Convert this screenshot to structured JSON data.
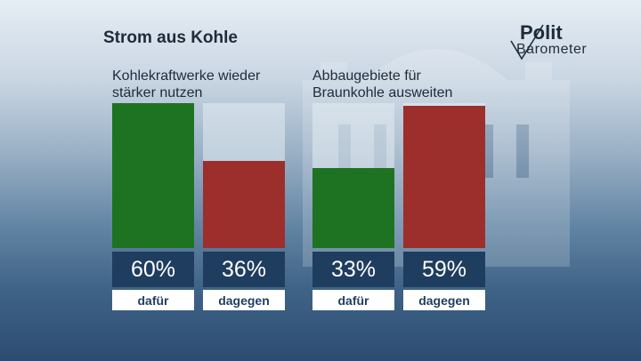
{
  "header": {
    "title": "Strom aus Kohle"
  },
  "logo": {
    "line1": "Polit",
    "line2": "Barometer"
  },
  "colors": {
    "for": "#1e7322",
    "against": "#9c2f2c",
    "value_box": "#1f3d5e"
  },
  "chart_data": [
    {
      "type": "bar",
      "title": "Kohlekraftwerke wieder stärker nutzen",
      "title_lines": [
        "Kohlekraftwerke wieder",
        "stärker nutzen"
      ],
      "categories": [
        "dafür",
        "dagegen"
      ],
      "values": [
        60,
        36
      ],
      "value_labels": [
        "60%",
        "36%"
      ],
      "ylim": [
        0,
        60
      ]
    },
    {
      "type": "bar",
      "title": "Abbaugebiete für Braunkohle ausweiten",
      "title_lines": [
        "Abbaugebiete für",
        "Braunkohle ausweiten"
      ],
      "categories": [
        "dafür",
        "dagegen"
      ],
      "values": [
        33,
        59
      ],
      "value_labels": [
        "33%",
        "59%"
      ],
      "ylim": [
        0,
        60
      ]
    }
  ]
}
